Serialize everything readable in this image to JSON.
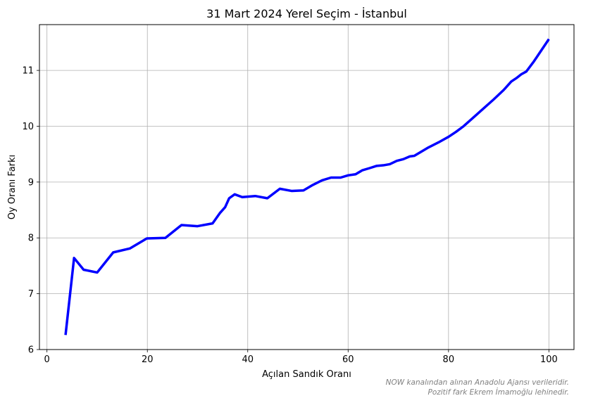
{
  "chart_data": {
    "type": "line",
    "title": "31 Mart 2024 Yerel Seçim - İstanbul",
    "xlabel": "Açılan Sandık Oranı",
    "ylabel": "Oy Oranı Farkı",
    "xlim": [
      -1.5,
      105
    ],
    "ylim": [
      6,
      11.82
    ],
    "xticks": [
      0,
      20,
      40,
      60,
      80,
      100
    ],
    "yticks": [
      6,
      7,
      8,
      9,
      10,
      11
    ],
    "grid": true,
    "line_color": "#0000ff",
    "notes": [
      "NOW kanalından alınan Anadolu Ajansı verileridir.",
      "Pozitif fark Ekrem İmamoğlu lehinedir."
    ],
    "x": [
      3.7,
      5.4,
      7.3,
      10.0,
      13.2,
      16.5,
      19.9,
      23.6,
      26.8,
      30.0,
      33.0,
      34.5,
      35.5,
      36.3,
      37.4,
      38.9,
      41.5,
      43.9,
      46.4,
      48.8,
      51.1,
      52.8,
      54.8,
      56.6,
      58.5,
      60.0,
      61.5,
      62.8,
      64.3,
      65.7,
      67.0,
      68.3,
      69.7,
      71.0,
      72.3,
      73.2,
      74.5,
      76.0,
      78.0,
      80.0,
      81.5,
      83.0,
      85.0,
      87.0,
      89.0,
      91.0,
      92.5,
      93.5,
      94.5,
      95.5,
      97.0,
      100.0
    ],
    "y": [
      6.26,
      7.64,
      7.43,
      7.38,
      7.74,
      7.81,
      7.99,
      8.0,
      8.23,
      8.21,
      8.26,
      8.45,
      8.55,
      8.71,
      8.78,
      8.73,
      8.75,
      8.71,
      8.88,
      8.84,
      8.85,
      8.94,
      9.03,
      9.08,
      9.08,
      9.12,
      9.14,
      9.21,
      9.25,
      9.29,
      9.3,
      9.32,
      9.38,
      9.41,
      9.46,
      9.47,
      9.54,
      9.62,
      9.71,
      9.81,
      9.9,
      10.0,
      10.16,
      10.32,
      10.48,
      10.65,
      10.8,
      10.86,
      10.93,
      10.98,
      11.16,
      11.56
    ]
  }
}
